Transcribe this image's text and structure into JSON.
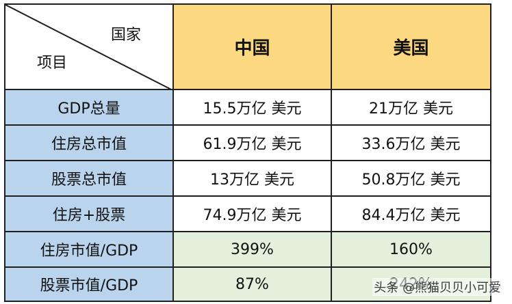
{
  "corner": {
    "top_label": "国家",
    "bottom_label": "项目"
  },
  "columns": [
    "中国",
    "美国"
  ],
  "rows": [
    {
      "label": "GDP总量",
      "values": [
        "15.5万亿 美元",
        "21万亿 美元"
      ]
    },
    {
      "label": "住房总市值",
      "values": [
        "61.9万亿 美元",
        "33.6万亿 美元"
      ]
    },
    {
      "label": "股票总市值",
      "values": [
        "13万亿 美元",
        "50.8万亿 美元"
      ]
    },
    {
      "label": "住房+股票",
      "values": [
        "74.9万亿 美元",
        "84.4万亿 美元"
      ]
    },
    {
      "label": "住房市值/GDP",
      "values": [
        "399%",
        "160%"
      ]
    },
    {
      "label": "股票市值/GDP",
      "values": [
        "87%",
        "242%"
      ]
    }
  ],
  "colors": {
    "header_bg": "#fcd980",
    "row_label_bg": "#b9d4ec",
    "ratio_bg": "#e4efdc",
    "border": "#1f1f1f"
  },
  "watermark": "头条 @熊猫贝贝小可爱"
}
